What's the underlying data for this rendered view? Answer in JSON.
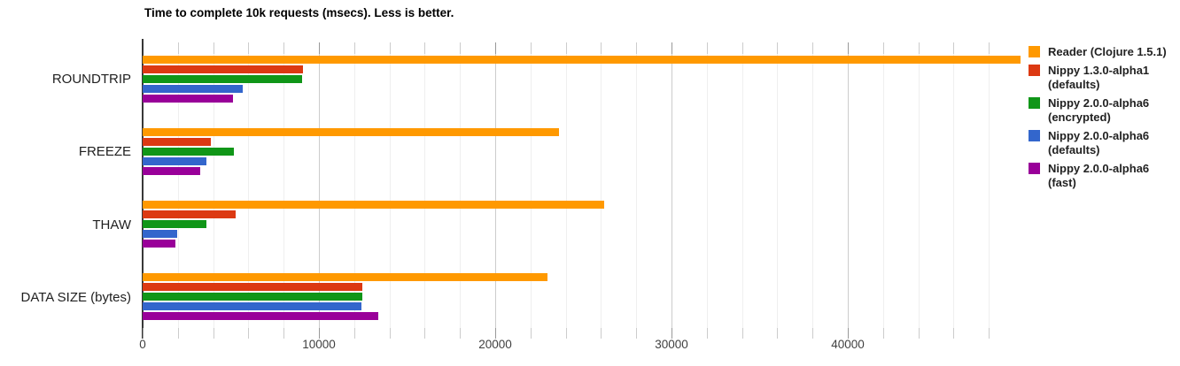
{
  "chart_data": {
    "type": "bar",
    "orientation": "horizontal",
    "title": "Time to complete 10k requests (msecs). Less is better.",
    "categories": [
      "ROUNDTRIP",
      "FREEZE",
      "THAW",
      "DATA SIZE (bytes)"
    ],
    "series": [
      {
        "name": "Reader (Clojure 1.5.1)",
        "legend_label": "Reader (Clojure 1.5.1)",
        "color": "#FF9900",
        "values": [
          49800,
          23600,
          26200,
          22950
        ]
      },
      {
        "name": "Nippy 1.3.0-alpha1 (defaults)",
        "legend_label": "Nippy 1.3.0-alpha1\n(defaults)",
        "color": "#DC3912",
        "values": [
          9100,
          3850,
          5300,
          12450
        ]
      },
      {
        "name": "Nippy 2.0.0-alpha6 (encrypted)",
        "legend_label": "Nippy 2.0.0-alpha6\n(encrypted)",
        "color": "#109618",
        "values": [
          9050,
          5200,
          3600,
          12480
        ]
      },
      {
        "name": "Nippy 2.0.0-alpha6 (defaults)",
        "legend_label": "Nippy 2.0.0-alpha6\n(defaults)",
        "color": "#3366CC",
        "values": [
          5700,
          3600,
          1950,
          12400
        ]
      },
      {
        "name": "Nippy 2.0.0-alpha6 (fast)",
        "legend_label": "Nippy 2.0.0-alpha6 (fast)",
        "color": "#990099",
        "values": [
          5150,
          3250,
          1870,
          13350
        ]
      }
    ],
    "axis": {
      "min": 0,
      "max": 49800,
      "minor_tick_step": 2000,
      "major_tick_step": 10000,
      "tick_labels": [
        "0",
        "10000",
        "20000",
        "30000",
        "40000"
      ]
    },
    "xlabel": "",
    "ylabel": "",
    "legend_position": "right",
    "grid": true,
    "colors": {
      "gridline_minor": "#efefef",
      "gridline_major": "#cccccc",
      "baseline": "#383838",
      "axis_text": "#404040",
      "category_text": "#1f1f1f",
      "legend_text": "#222222",
      "background": "#ffffff"
    }
  }
}
